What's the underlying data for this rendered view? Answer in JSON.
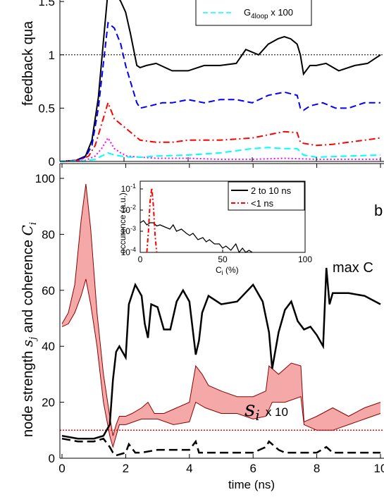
{
  "chart_data": [
    {
      "type": "line",
      "ylabel": "feedback qua",
      "ylim": [
        0,
        1.6
      ],
      "yticks": [
        "0",
        "0.5",
        "1",
        "1.5"
      ],
      "reference_line": 1,
      "legend": [
        {
          "label": "G",
          "subscript": "4loop",
          "suffix": " x 100"
        }
      ],
      "series": [
        {
          "color": "#000000",
          "style": "solid",
          "x": [
            0,
            0.5,
            0.8,
            1.0,
            1.2,
            1.35,
            1.5,
            1.7,
            1.9,
            2.05,
            2.2,
            2.4,
            2.5,
            2.7,
            3.0,
            3.5,
            4.0,
            4.5,
            5.0,
            5.5,
            5.8,
            6.2,
            6.5,
            6.8,
            7.0,
            7.2,
            7.4,
            7.5,
            7.6,
            7.8,
            8.0,
            8.3,
            8.7,
            9.2,
            9.6,
            10.0
          ],
          "y": [
            0,
            0.01,
            0.05,
            0.2,
            0.6,
            1.1,
            1.6,
            1.6,
            1.5,
            1.4,
            1.2,
            0.9,
            0.88,
            0.9,
            0.92,
            0.85,
            0.85,
            0.9,
            0.9,
            0.92,
            1.05,
            1.0,
            1.1,
            1.15,
            1.17,
            1.15,
            1.1,
            1.0,
            0.82,
            0.9,
            0.9,
            0.92,
            0.85,
            0.9,
            0.92,
            1.0
          ]
        },
        {
          "color": "#0000ff",
          "style": "dash",
          "x": [
            0,
            0.5,
            0.8,
            1.0,
            1.2,
            1.35,
            1.5,
            1.7,
            1.9,
            2.05,
            2.2,
            2.4,
            2.5,
            2.8,
            3.2,
            3.5,
            4.0,
            4.5,
            5.0,
            5.5,
            6.0,
            6.5,
            7.0,
            7.4,
            7.5,
            7.6,
            7.8,
            8.2,
            8.6,
            9.0,
            9.5,
            10.0
          ],
          "y": [
            0,
            0.01,
            0.04,
            0.15,
            0.5,
            0.9,
            1.3,
            1.25,
            1.1,
            0.9,
            0.75,
            0.55,
            0.5,
            0.52,
            0.55,
            0.55,
            0.58,
            0.55,
            0.58,
            0.58,
            0.55,
            0.62,
            0.65,
            0.62,
            0.5,
            0.48,
            0.52,
            0.55,
            0.5,
            0.5,
            0.55,
            0.55
          ]
        },
        {
          "color": "#ff0000",
          "style": "dashdot",
          "x": [
            0,
            0.6,
            0.9,
            1.1,
            1.3,
            1.5,
            1.7,
            1.9,
            2.1,
            2.3,
            2.5,
            3.0,
            3.5,
            4.0,
            5.0,
            6.0,
            6.5,
            7.0,
            7.4,
            7.5,
            7.6,
            8.0,
            8.5,
            9.0,
            9.5,
            10.0
          ],
          "y": [
            0,
            0.01,
            0.05,
            0.15,
            0.35,
            0.55,
            0.4,
            0.35,
            0.3,
            0.25,
            0.2,
            0.18,
            0.18,
            0.2,
            0.2,
            0.22,
            0.25,
            0.28,
            0.27,
            0.18,
            0.17,
            0.15,
            0.16,
            0.18,
            0.2,
            0.22
          ]
        },
        {
          "color": "#ff00ff",
          "style": "dot",
          "x": [
            0,
            0.8,
            1.1,
            1.3,
            1.5,
            1.7,
            1.9,
            2.1,
            2.5,
            3.0,
            4.0,
            5.0,
            6.0,
            7.0,
            8.0,
            9.0,
            10.0
          ],
          "y": [
            0,
            0.01,
            0.05,
            0.12,
            0.22,
            0.12,
            0.08,
            0.05,
            0.04,
            0.03,
            0.03,
            0.02,
            0.02,
            0.03,
            0.02,
            0.02,
            0.02
          ]
        },
        {
          "color": "#00ffff",
          "style": "dash",
          "label": "G4loop x 100",
          "x": [
            0,
            0.8,
            1.1,
            1.3,
            1.5,
            1.7,
            1.9,
            2.2,
            2.6,
            3.0,
            4.0,
            5.0,
            6.0,
            6.5,
            7.0,
            7.4,
            7.6,
            8.0,
            9.0,
            10.0
          ],
          "y": [
            0,
            0.005,
            0.02,
            0.05,
            0.08,
            0.06,
            0.05,
            0.04,
            0.04,
            0.05,
            0.06,
            0.08,
            0.12,
            0.13,
            0.12,
            0.12,
            0.06,
            0.04,
            0.05,
            0.06
          ]
        }
      ]
    },
    {
      "type": "line",
      "xlabel": "time (ns)",
      "ylim": [
        0,
        100
      ],
      "xlim": [
        0,
        10
      ],
      "xticks": [
        "0",
        "2",
        "4",
        "6",
        "8",
        "10"
      ],
      "yticks": [
        "0",
        "20",
        "40",
        "60",
        "80",
        "100"
      ],
      "ylabel_parts": [
        "node strength ",
        "s",
        "j",
        " and coherence ",
        "C",
        "i"
      ],
      "panel_label": "b",
      "annotations": {
        "max_c": "max C",
        "si_main": "s",
        "si_sub": "i",
        "si_scale": "x 10"
      },
      "reference_line": 10,
      "series": [
        {
          "name": "node strength (pink band, upper)",
          "color": "#f08080",
          "fill": "#f4a8a8",
          "x": [
            0,
            0.2,
            0.4,
            0.6,
            0.75,
            0.9,
            1.1,
            1.3,
            1.5,
            1.6,
            1.7,
            1.8,
            2.0,
            2.2,
            2.5,
            2.7,
            2.9,
            3.2,
            3.6,
            4.0,
            4.2,
            4.4,
            4.6,
            5.0,
            5.5,
            6.0,
            6.4,
            6.5,
            6.8,
            7.0,
            7.2,
            7.5,
            7.6,
            8.0,
            8.5,
            9.0,
            9.5,
            10.0
          ],
          "y": [
            48,
            52,
            62,
            85,
            98,
            82,
            52,
            30,
            15,
            8,
            12,
            15,
            15,
            16,
            18,
            20,
            16,
            16,
            18,
            20,
            33,
            30,
            26,
            24,
            22,
            22,
            24,
            33,
            30,
            32,
            34,
            33,
            13,
            15,
            18,
            15,
            18,
            20
          ]
        },
        {
          "name": "node strength (pink band, lower)",
          "color": "#8b0000",
          "x": [
            0,
            0.2,
            0.4,
            0.6,
            0.75,
            0.9,
            1.1,
            1.3,
            1.5,
            1.6,
            1.8,
            2.0,
            2.5,
            3.0,
            3.5,
            4.0,
            4.2,
            4.5,
            5.0,
            5.5,
            6.0,
            6.4,
            6.6,
            7.0,
            7.5,
            7.6,
            8.0,
            8.5,
            9.0,
            9.5,
            10.0
          ],
          "y": [
            47,
            48,
            52,
            58,
            64,
            55,
            40,
            20,
            8,
            4,
            12,
            12,
            14,
            14,
            12,
            13,
            20,
            18,
            16,
            16,
            14,
            15,
            20,
            20,
            22,
            12,
            10,
            10,
            12,
            14,
            16
          ]
        },
        {
          "name": "max C",
          "color": "#000000",
          "width": 2.5,
          "x": [
            0,
            0.5,
            1.0,
            1.3,
            1.5,
            1.6,
            1.7,
            1.8,
            2.0,
            2.1,
            2.3,
            2.5,
            2.6,
            2.7,
            2.8,
            3.0,
            3.2,
            3.4,
            3.6,
            3.8,
            4.0,
            4.2,
            4.3,
            4.4,
            4.6,
            5.0,
            5.5,
            6.0,
            6.3,
            6.5,
            6.6,
            6.8,
            7.0,
            7.2,
            7.4,
            7.6,
            7.8,
            8.0,
            8.2,
            8.3,
            8.4,
            8.5,
            9.0,
            9.5,
            10.0
          ],
          "y": [
            8,
            7,
            7,
            8,
            12,
            28,
            38,
            40,
            36,
            55,
            62,
            58,
            48,
            43,
            55,
            54,
            46,
            46,
            56,
            60,
            56,
            37,
            42,
            52,
            58,
            55,
            56,
            62,
            56,
            45,
            32,
            45,
            53,
            56,
            49,
            46,
            47,
            44,
            40,
            68,
            55,
            59,
            59,
            58,
            55
          ]
        },
        {
          "name": "min C",
          "color": "#000000",
          "width": 2.5,
          "style": "dash",
          "x": [
            0,
            0.5,
            1.0,
            1.3,
            1.5,
            1.6,
            1.7,
            2.0,
            2.1,
            2.3,
            2.5,
            3.0,
            3.5,
            4.0,
            4.2,
            4.3,
            4.5,
            5.0,
            5.5,
            6.0,
            6.4,
            6.5,
            6.8,
            7.0,
            7.5,
            8.0,
            8.3,
            8.5,
            9.0,
            9.5,
            10.0
          ],
          "y": [
            7,
            6,
            6,
            7,
            4,
            2,
            1,
            2,
            5,
            2,
            2,
            3,
            3,
            3,
            6,
            2,
            2,
            2,
            2,
            2,
            4,
            6,
            3,
            2,
            2,
            2,
            4,
            2,
            2,
            2,
            2
          ]
        }
      ]
    },
    {
      "type": "line",
      "inset": true,
      "xlabel_parts": [
        "C",
        "i",
        " (%)"
      ],
      "ylabel": "occurence (a.u.)",
      "xlim": [
        0,
        100
      ],
      "xticks": [
        "0",
        "50",
        "100"
      ],
      "ylim_log": [
        -4,
        -1
      ],
      "yticks": [
        "10",
        "10",
        "10",
        "10"
      ],
      "ytick_exps": [
        "-1",
        "-2",
        "-3",
        "-4"
      ],
      "legend": [
        {
          "label": "2 to 10 ns",
          "color": "#000000",
          "style": "solid"
        },
        {
          "label": "<1 ns",
          "color": "#ff0000",
          "style": "dashdot"
        }
      ],
      "series": [
        {
          "name": "2 to 10 ns",
          "color": "#000000",
          "x": [
            0,
            2,
            4,
            6,
            8,
            10,
            12,
            15,
            18,
            20,
            22,
            25,
            28,
            30,
            32,
            35,
            38,
            40,
            42,
            45,
            48,
            50,
            52,
            55,
            58,
            60,
            62,
            64,
            66,
            68
          ],
          "y": [
            -2.6,
            -2.5,
            -2.7,
            -2.6,
            -2.6,
            -2.75,
            -2.7,
            -2.8,
            -2.9,
            -2.7,
            -3.0,
            -2.9,
            -3.1,
            -3.2,
            -3.1,
            -3.4,
            -3.3,
            -3.5,
            -3.4,
            -3.6,
            -3.6,
            -3.8,
            -3.7,
            -3.9,
            -3.6,
            -4.0,
            -3.8,
            -4.0,
            -3.9,
            -4.0
          ]
        },
        {
          "name": "<1 ns",
          "color": "#ff0000",
          "x": [
            4,
            5,
            6,
            7,
            8,
            9,
            10
          ],
          "y": [
            -4,
            -3.0,
            -1.6,
            -0.95,
            -1.8,
            -3.2,
            -4
          ]
        }
      ]
    }
  ]
}
